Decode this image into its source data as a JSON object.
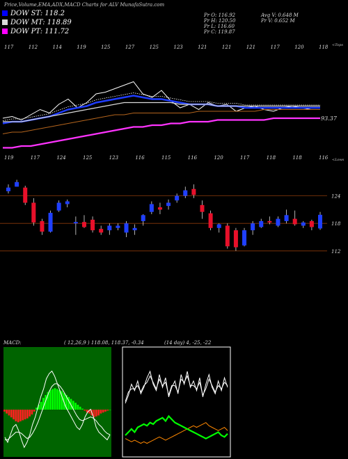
{
  "header": {
    "title": "Price,Volume,EMA,ADX,MACD Charts for ALV MunafaSutra.com"
  },
  "legend": [
    {
      "label": "DOW ST: 118.2",
      "color": "#0000ff"
    },
    {
      "label": "DOW MT: 118.89",
      "color": "#d9d9d9"
    },
    {
      "label": "DOW PT: 111.72",
      "color": "#ff00ff"
    }
  ],
  "stats": {
    "pr_o": "Pr O: 116.92",
    "pr_h": "Pr H: 120.50",
    "pr_l": "Pr L: 116.60",
    "pr_c": "Pr C: 119.87",
    "avg_v": "Avg V: 0.648 M",
    "pr_v": "Pr V: 0.652 M"
  },
  "colors": {
    "up": "#1f3fff",
    "down": "#e8102a",
    "st": "#1e3cff",
    "pt": "#ff33ff",
    "grid": "#8b3a0a",
    "macd_hist": "#00ff00",
    "adx_green": "#00ff00",
    "adx_orange": "#ff8800"
  },
  "chart_data": [
    {
      "type": "line",
      "name": "ema-panel",
      "top_labels": [
        "117",
        "112",
        "114",
        "119",
        "125",
        "127",
        "125",
        "123",
        "121",
        "121",
        "121",
        "117",
        "120",
        "118"
      ],
      "bottom_labels": [
        "119",
        "117",
        "124",
        "125",
        "123",
        "116",
        "115",
        "116",
        "120",
        "117",
        "118",
        "118",
        "116"
      ],
      "right_label_top": "<Tops",
      "right_label_bottom": "<Lows",
      "last_value_label": "93.37",
      "series": [
        {
          "values": [
            112,
            113,
            111,
            114,
            117,
            115,
            120,
            123,
            118,
            121,
            126,
            127,
            129,
            131,
            133,
            126,
            124,
            128,
            122,
            118,
            120,
            117,
            121,
            119,
            120,
            116,
            118,
            119,
            117,
            116,
            118,
            119,
            118,
            117,
            117
          ]
        },
        {
          "values": [
            109,
            110,
            110,
            111,
            112,
            113,
            115,
            117,
            118,
            119,
            121,
            122,
            123,
            124,
            125,
            124,
            123,
            123,
            122,
            121,
            120,
            120,
            120,
            119,
            119,
            119,
            118,
            118,
            118,
            118,
            118,
            118,
            118,
            118,
            118
          ]
        },
        {
          "values": [
            110,
            110,
            110,
            111,
            112,
            113,
            114,
            115,
            116,
            117,
            118,
            119,
            120,
            121,
            121,
            121,
            121,
            121,
            121,
            120,
            120,
            120,
            120,
            119,
            119,
            119,
            119,
            119,
            119,
            119,
            119,
            119,
            119,
            119,
            119
          ]
        },
        {
          "values": [
            103,
            104,
            104,
            105,
            106,
            107,
            108,
            109,
            110,
            111,
            112,
            113,
            114,
            114,
            115,
            115,
            115,
            115,
            115,
            115,
            115,
            116,
            116,
            116,
            116,
            116,
            116,
            116,
            117,
            117,
            117,
            117,
            117,
            117,
            117
          ]
        },
        {
          "values": [
            95,
            95,
            96,
            96,
            97,
            98,
            99,
            100,
            101,
            102,
            103,
            104,
            105,
            106,
            107,
            107,
            108,
            108,
            109,
            109,
            110,
            110,
            110,
            111,
            111,
            111,
            111,
            111,
            111,
            112,
            112,
            112,
            112,
            112,
            112
          ]
        }
      ]
    },
    {
      "type": "bar",
      "name": "candlestick-panel",
      "price_labels": [
        "124",
        "118",
        "112"
      ],
      "candles": [
        {
          "o": 125.0,
          "h": 126.5,
          "l": 124.5,
          "c": 125.8
        },
        {
          "o": 126.0,
          "h": 127.5,
          "l": 126.0,
          "c": 127.0
        },
        {
          "o": 125.8,
          "h": 126.2,
          "l": 122.0,
          "c": 122.5
        },
        {
          "o": 122.5,
          "h": 123.5,
          "l": 117.5,
          "c": 118.2
        },
        {
          "o": 118.5,
          "h": 119.0,
          "l": 115.5,
          "c": 116.2
        },
        {
          "o": 116.2,
          "h": 120.8,
          "l": 116.0,
          "c": 120.3
        },
        {
          "o": 120.8,
          "h": 123.0,
          "l": 120.5,
          "c": 122.5
        },
        {
          "o": 122.2,
          "h": 123.2,
          "l": 121.5,
          "c": 122.8
        },
        {
          "o": 118.0,
          "h": 119.5,
          "l": 115.5,
          "c": 118.3
        },
        {
          "o": 118.3,
          "h": 119.8,
          "l": 117.0,
          "c": 117.2
        },
        {
          "o": 118.8,
          "h": 119.5,
          "l": 116.0,
          "c": 116.5
        },
        {
          "o": 116.8,
          "h": 117.5,
          "l": 115.5,
          "c": 116.0
        },
        {
          "o": 116.5,
          "h": 118.0,
          "l": 115.5,
          "c": 117.5
        },
        {
          "o": 117.0,
          "h": 118.0,
          "l": 116.5,
          "c": 117.5
        },
        {
          "o": 116.0,
          "h": 118.5,
          "l": 115.0,
          "c": 118.0
        },
        {
          "o": 116.5,
          "h": 117.8,
          "l": 115.5,
          "c": 117.0
        },
        {
          "o": 118.5,
          "h": 120.0,
          "l": 117.5,
          "c": 119.8
        },
        {
          "o": 120.5,
          "h": 122.8,
          "l": 120.0,
          "c": 122.2
        },
        {
          "o": 121.5,
          "h": 122.5,
          "l": 120.0,
          "c": 121.0
        },
        {
          "o": 121.8,
          "h": 123.2,
          "l": 121.0,
          "c": 122.5
        },
        {
          "o": 123.0,
          "h": 124.5,
          "l": 122.5,
          "c": 124.0
        },
        {
          "o": 124.0,
          "h": 126.0,
          "l": 123.5,
          "c": 125.2
        },
        {
          "o": 125.5,
          "h": 126.5,
          "l": 123.5,
          "c": 124.2
        },
        {
          "o": 122.0,
          "h": 123.0,
          "l": 119.0,
          "c": 120.5
        },
        {
          "o": 120.2,
          "h": 120.8,
          "l": 116.5,
          "c": 117.0
        },
        {
          "o": 117.0,
          "h": 118.0,
          "l": 116.0,
          "c": 117.8
        },
        {
          "o": 117.5,
          "h": 118.0,
          "l": 112.5,
          "c": 113.0
        },
        {
          "o": 116.5,
          "h": 117.0,
          "l": 112.0,
          "c": 112.8
        },
        {
          "o": 113.2,
          "h": 117.0,
          "l": 113.0,
          "c": 116.5
        },
        {
          "o": 116.5,
          "h": 118.5,
          "l": 115.5,
          "c": 118.0
        },
        {
          "o": 117.2,
          "h": 119.0,
          "l": 117.0,
          "c": 118.5
        },
        {
          "o": 118.5,
          "h": 119.5,
          "l": 117.8,
          "c": 118.2
        },
        {
          "o": 117.5,
          "h": 119.5,
          "l": 117.2,
          "c": 119.0
        },
        {
          "o": 118.5,
          "h": 121.0,
          "l": 118.0,
          "c": 119.8
        },
        {
          "o": 119.0,
          "h": 120.8,
          "l": 117.5,
          "c": 117.8
        },
        {
          "o": 117.5,
          "h": 118.5,
          "l": 117.0,
          "c": 118.2
        },
        {
          "o": 118.5,
          "h": 118.8,
          "l": 116.5,
          "c": 117.2
        },
        {
          "o": 116.9,
          "h": 120.5,
          "l": 116.6,
          "c": 119.87
        }
      ]
    },
    {
      "type": "bar",
      "name": "macd-panel",
      "title": "MACD:",
      "values_text": "( 12,26,9 ) 118.08, 118.37, -0.34",
      "histogram": [
        -2,
        -4,
        -6,
        -8,
        -10,
        -12,
        -13,
        -12,
        -11,
        -10,
        -9,
        -7,
        -5,
        -2,
        2,
        5,
        8,
        12,
        15,
        18,
        20,
        21,
        22,
        21,
        20,
        19,
        17,
        15,
        13,
        11,
        9,
        7,
        5,
        3,
        1,
        -1,
        -3,
        -4,
        -6,
        -8,
        -7,
        -6,
        -4,
        -3,
        -2,
        -1,
        0
      ],
      "line_a": [
        60,
        64,
        58,
        52,
        50,
        55,
        62,
        68,
        64,
        58,
        50,
        44,
        36,
        28,
        22,
        14,
        10,
        8,
        12,
        18,
        24,
        30,
        36,
        40,
        44,
        48,
        52,
        54,
        50,
        44,
        40,
        38,
        44,
        52,
        56,
        58,
        60,
        62,
        58
      ],
      "line_b": [
        62,
        62,
        60,
        58,
        56,
        56,
        57,
        59,
        61,
        60,
        57,
        53,
        48,
        42,
        36,
        30,
        24,
        20,
        18,
        18,
        20,
        23,
        27,
        31,
        35,
        39,
        43,
        46,
        47,
        46,
        45,
        44,
        45,
        47,
        50,
        52,
        55,
        57,
        58
      ]
    },
    {
      "type": "line",
      "name": "adx-panel",
      "title": "ADX",
      "values_text": "(14 day) 4, -25, -22",
      "adx_white_a": [
        30,
        35,
        42,
        38,
        44,
        36,
        40,
        46,
        50,
        42,
        38,
        48,
        40,
        46,
        34,
        40,
        44,
        36,
        48,
        42,
        50,
        40,
        44,
        38,
        46,
        34,
        42,
        48,
        40,
        36,
        44,
        38,
        46,
        40
      ],
      "adx_white_b": [
        32,
        38,
        40,
        40,
        42,
        38,
        42,
        44,
        48,
        44,
        40,
        46,
        42,
        44,
        36,
        42,
        42,
        38,
        46,
        44,
        48,
        42,
        42,
        40,
        44,
        36,
        40,
        46,
        42,
        38,
        42,
        40,
        44,
        42
      ],
      "adx_green": [
        10,
        12,
        14,
        12,
        15,
        16,
        17,
        16,
        18,
        17,
        19,
        20,
        21,
        19,
        22,
        20,
        18,
        17,
        16,
        15,
        14,
        13,
        12,
        11,
        10,
        9,
        8,
        9,
        10,
        11,
        12,
        10,
        9,
        11
      ],
      "adx_orange": [
        8,
        7,
        6,
        7,
        6,
        5,
        6,
        5,
        6,
        7,
        8,
        9,
        8,
        7,
        8,
        9,
        10,
        11,
        12,
        13,
        14,
        15,
        16,
        15,
        16,
        17,
        18,
        16,
        15,
        14,
        13,
        14,
        15,
        13
      ]
    }
  ]
}
